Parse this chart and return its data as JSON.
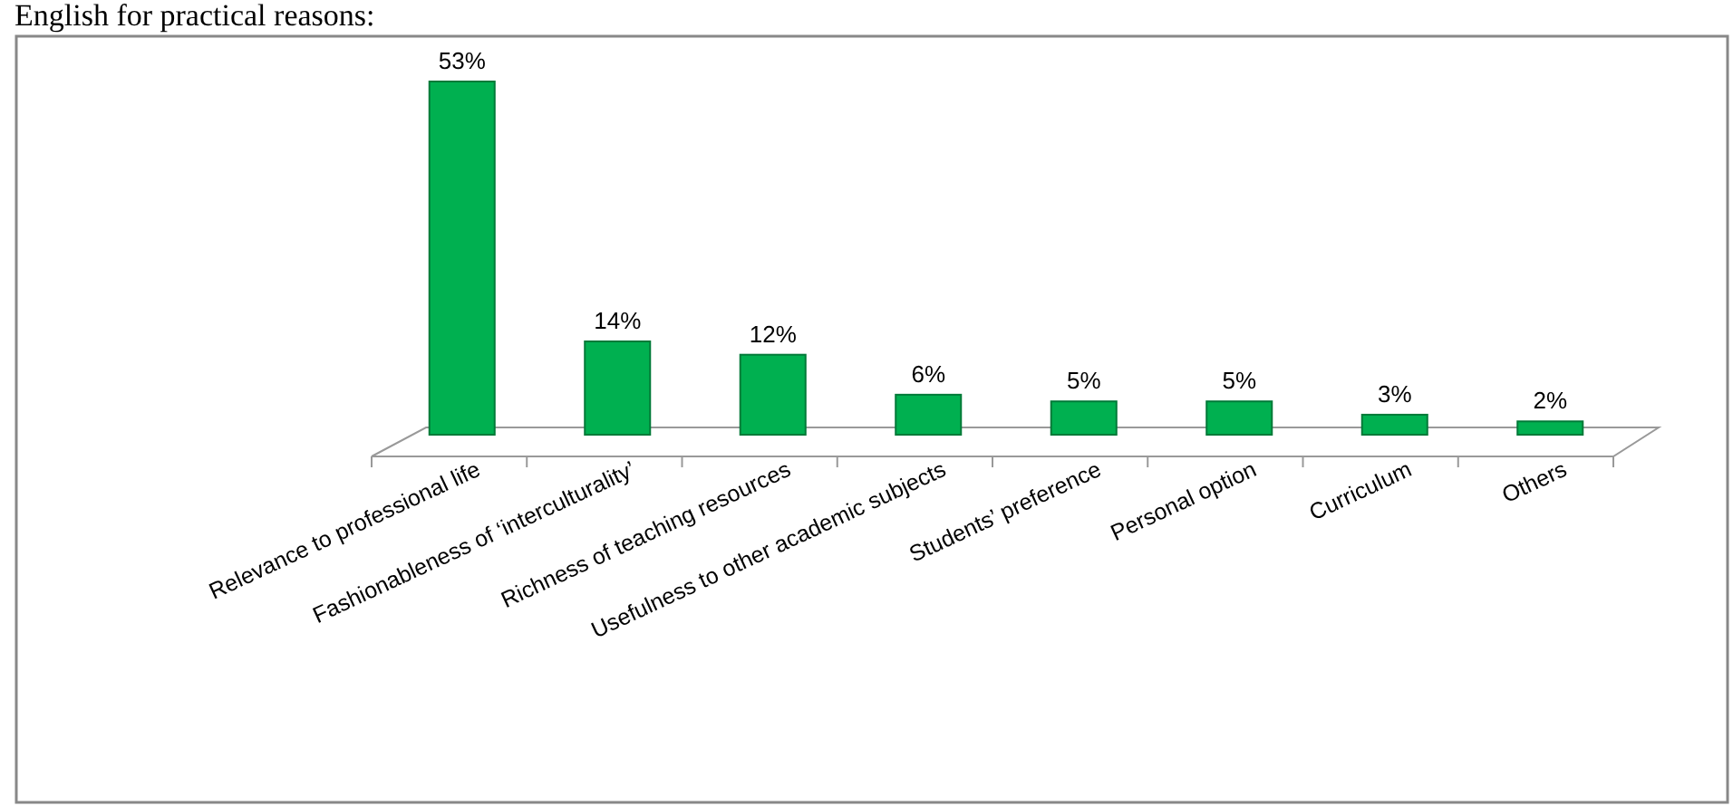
{
  "chart_data": {
    "type": "bar",
    "annotations": [
      "English for practical reasons:"
    ],
    "categories": [
      "Relevance to professional life",
      "Fashionableness of ‘interculturality’",
      "Richness of teaching resources",
      "Usefulness to other academic subjects",
      "Students’  preference",
      "Personal option",
      "Curriculum",
      "Others"
    ],
    "values": [
      53,
      14,
      12,
      6,
      5,
      5,
      3,
      2
    ],
    "value_labels": [
      "53%",
      "14%",
      "12%",
      "6%",
      "5%",
      "5%",
      "3%",
      "2%"
    ],
    "color": "#00b050"
  }
}
